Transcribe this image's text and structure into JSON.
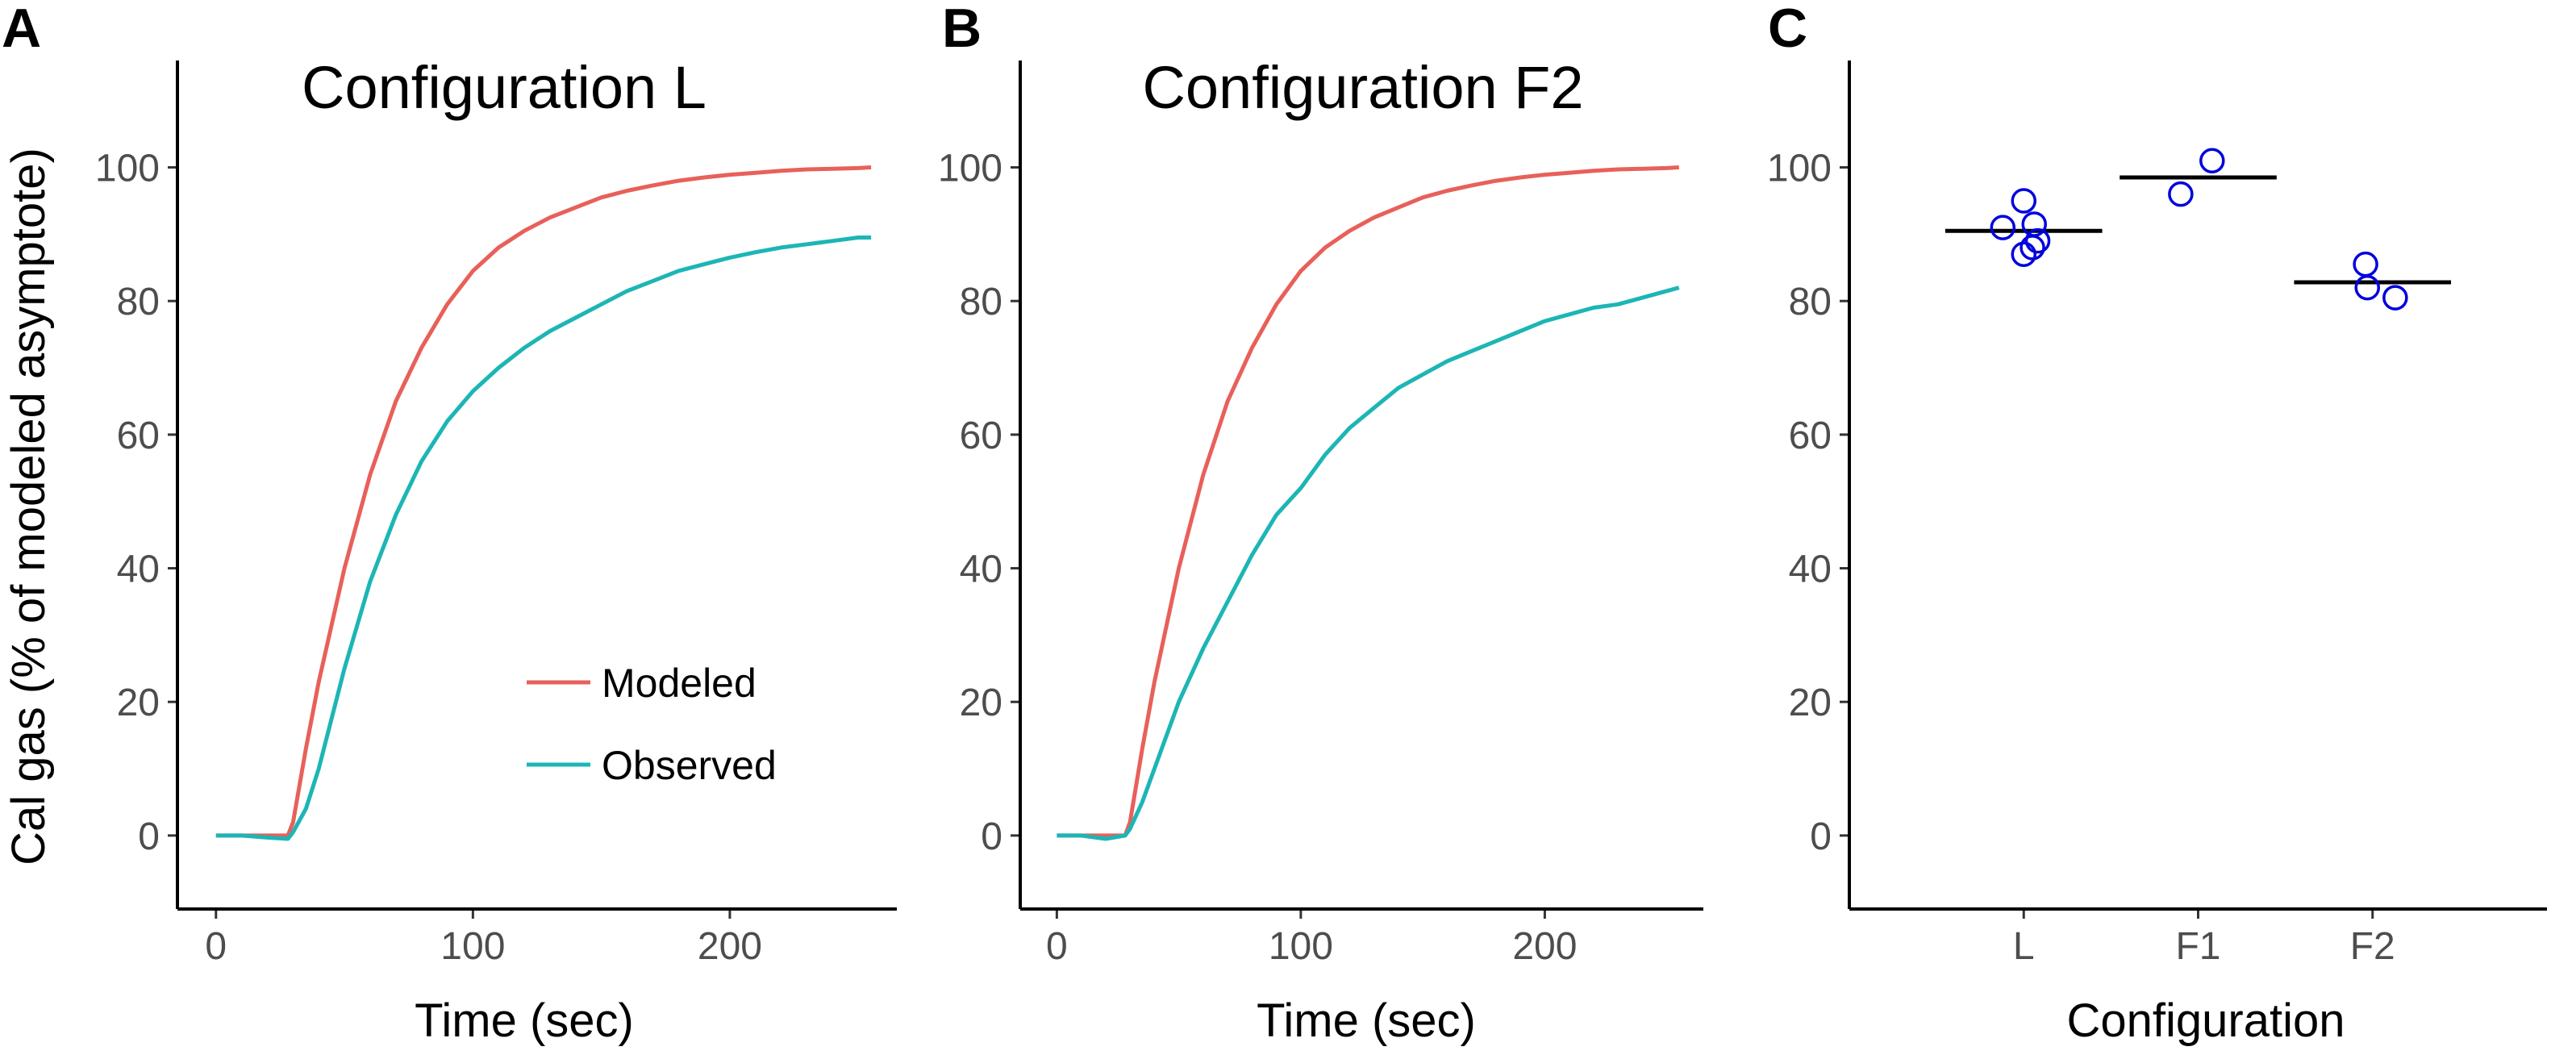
{
  "figure": {
    "ylabel": "Cal gas (% of modeled asymptote)",
    "colors": {
      "modeled": "#E8605A",
      "observed": "#1DB5B5",
      "points": "#0000DD",
      "axis": "#000000"
    }
  },
  "chart_data": [
    {
      "panel": "A",
      "type": "line",
      "title": "Configuration L",
      "xlabel": "Time (sec)",
      "xlim": [
        -15,
        265
      ],
      "ylim": [
        -11,
        116
      ],
      "xticks": [
        0,
        100,
        200
      ],
      "yticks": [
        0,
        20,
        40,
        60,
        80,
        100
      ],
      "legend": {
        "position": "bottom-right",
        "entries": [
          "Modeled",
          "Observed"
        ]
      },
      "series": [
        {
          "name": "Modeled",
          "x": [
            0,
            10,
            20,
            28,
            30,
            35,
            40,
            50,
            60,
            70,
            80,
            90,
            100,
            110,
            120,
            130,
            140,
            150,
            160,
            170,
            180,
            190,
            200,
            210,
            220,
            230,
            240,
            250,
            255
          ],
          "y": [
            0,
            0,
            0,
            0,
            2,
            13,
            23,
            40,
            54,
            65,
            73,
            79.5,
            84.5,
            88,
            90.5,
            92.5,
            94,
            95.5,
            96.5,
            97.3,
            98,
            98.5,
            98.9,
            99.2,
            99.5,
            99.7,
            99.8,
            99.9,
            100
          ]
        },
        {
          "name": "Observed",
          "x": [
            0,
            10,
            20,
            28,
            30,
            35,
            40,
            50,
            60,
            70,
            80,
            90,
            100,
            110,
            120,
            130,
            140,
            150,
            160,
            170,
            180,
            190,
            200,
            210,
            220,
            230,
            240,
            250,
            255
          ],
          "y": [
            0,
            0,
            -0.3,
            -0.5,
            0.5,
            4,
            10,
            25,
            38,
            48,
            56,
            62,
            66.5,
            70,
            73,
            75.5,
            77.5,
            79.5,
            81.5,
            83,
            84.5,
            85.5,
            86.5,
            87.3,
            88,
            88.5,
            89,
            89.5,
            89.5
          ]
        }
      ]
    },
    {
      "panel": "B",
      "type": "line",
      "title": "Configuration F2",
      "xlabel": "Time (sec)",
      "xlim": [
        -15,
        265
      ],
      "ylim": [
        -11,
        116
      ],
      "xticks": [
        0,
        100,
        200
      ],
      "yticks": [
        0,
        20,
        40,
        60,
        80,
        100
      ],
      "series": [
        {
          "name": "Modeled",
          "x": [
            0,
            10,
            20,
            28,
            30,
            35,
            40,
            50,
            60,
            70,
            80,
            90,
            100,
            110,
            120,
            130,
            140,
            150,
            160,
            170,
            180,
            190,
            200,
            210,
            220,
            230,
            240,
            250,
            255
          ],
          "y": [
            0,
            0,
            0,
            0,
            2,
            13,
            23,
            40,
            54,
            65,
            73,
            79.5,
            84.5,
            88,
            90.5,
            92.5,
            94,
            95.5,
            96.5,
            97.3,
            98,
            98.5,
            98.9,
            99.2,
            99.5,
            99.7,
            99.8,
            99.9,
            100
          ]
        },
        {
          "name": "Observed",
          "x": [
            0,
            10,
            20,
            28,
            30,
            35,
            40,
            50,
            60,
            70,
            80,
            90,
            100,
            110,
            120,
            130,
            140,
            150,
            160,
            170,
            180,
            190,
            200,
            210,
            220,
            230,
            240,
            250,
            255
          ],
          "y": [
            0,
            0,
            -0.5,
            0,
            1,
            5,
            10,
            20,
            28,
            35,
            42,
            48,
            52,
            57,
            61,
            64,
            67,
            69,
            71,
            72.5,
            74,
            75.5,
            77,
            78,
            79,
            79.5,
            80.5,
            81.5,
            82
          ]
        }
      ]
    },
    {
      "panel": "C",
      "type": "scatter",
      "xlabel": "Configuration",
      "categories": [
        "L",
        "F1",
        "F2"
      ],
      "ylim": [
        -11,
        116
      ],
      "yticks": [
        0,
        20,
        40,
        60,
        80,
        100
      ],
      "points": [
        {
          "category": "L",
          "offset": 0.0,
          "y": 95
        },
        {
          "category": "L",
          "offset": -0.12,
          "y": 91
        },
        {
          "category": "L",
          "offset": 0.06,
          "y": 91.5
        },
        {
          "category": "L",
          "offset": 0.08,
          "y": 89
        },
        {
          "category": "L",
          "offset": 0.05,
          "y": 88
        },
        {
          "category": "L",
          "offset": 0.0,
          "y": 87
        },
        {
          "category": "F1",
          "offset": -0.1,
          "y": 96
        },
        {
          "category": "F1",
          "offset": 0.08,
          "y": 101
        },
        {
          "category": "F2",
          "offset": -0.04,
          "y": 85.5
        },
        {
          "category": "F2",
          "offset": -0.03,
          "y": 82
        },
        {
          "category": "F2",
          "offset": 0.13,
          "y": 80.5
        }
      ],
      "means": [
        {
          "category": "L",
          "y": 90.5
        },
        {
          "category": "F1",
          "y": 98.5
        },
        {
          "category": "F2",
          "y": 82.8
        }
      ]
    }
  ]
}
